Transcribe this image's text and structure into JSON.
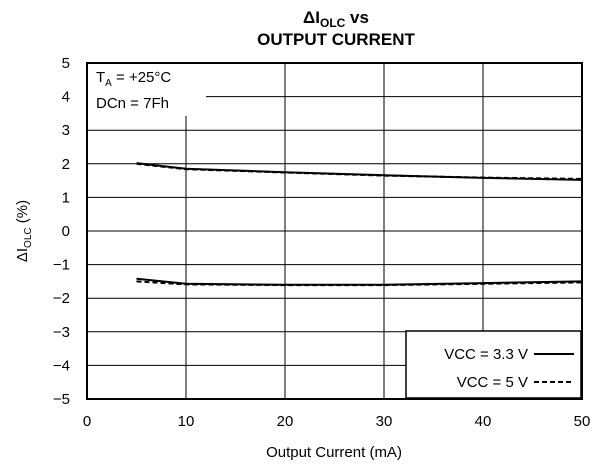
{
  "chart_data": {
    "type": "line",
    "title_line1_main": "ΔI",
    "title_line1_sub": "OLC",
    "title_line1_suffix": " vs",
    "title_line2": "OUTPUT CURRENT",
    "xlabel": "Output Current (mA)",
    "ylabel_main": "ΔI",
    "ylabel_sub": "OLC",
    "ylabel_suffix": " (%)",
    "xlim": [
      0,
      50
    ],
    "ylim": [
      -5,
      5
    ],
    "x_ticks": [
      0,
      10,
      20,
      30,
      40,
      50
    ],
    "y_ticks": [
      5,
      4,
      3,
      2,
      1,
      0,
      -1,
      -2,
      -3,
      -4,
      -5
    ],
    "y_tick_labels": [
      "5",
      "4",
      "3",
      "2",
      "1",
      "0",
      "−1",
      "−2",
      "−3",
      "−4",
      "−5"
    ],
    "grid": true,
    "annotation": {
      "line1_main": "T",
      "line1_sub": "A",
      "line1_suffix": " = +25°C",
      "line2": "DCn = 7Fh"
    },
    "legend_position": "bottom-right",
    "series": [
      {
        "name": "VCC = 3.3 V",
        "style": "solid",
        "color": "#000000",
        "curves": [
          {
            "x": [
              5,
              10,
              20,
              30,
              40,
              50
            ],
            "y": [
              2.02,
              1.85,
              1.75,
              1.66,
              1.58,
              1.52
            ]
          },
          {
            "x": [
              5,
              10,
              20,
              30,
              40,
              50
            ],
            "y": [
              -1.42,
              -1.57,
              -1.6,
              -1.6,
              -1.55,
              -1.5
            ]
          }
        ]
      },
      {
        "name": "VCC = 5 V",
        "style": "dashed",
        "color": "#000000",
        "curves": [
          {
            "x": [
              5,
              10,
              20,
              30,
              40,
              50
            ],
            "y": [
              2.0,
              1.84,
              1.74,
              1.65,
              1.59,
              1.55
            ]
          },
          {
            "x": [
              5,
              10,
              20,
              30,
              40,
              50
            ],
            "y": [
              -1.5,
              -1.59,
              -1.61,
              -1.61,
              -1.57,
              -1.53
            ]
          }
        ]
      }
    ]
  }
}
